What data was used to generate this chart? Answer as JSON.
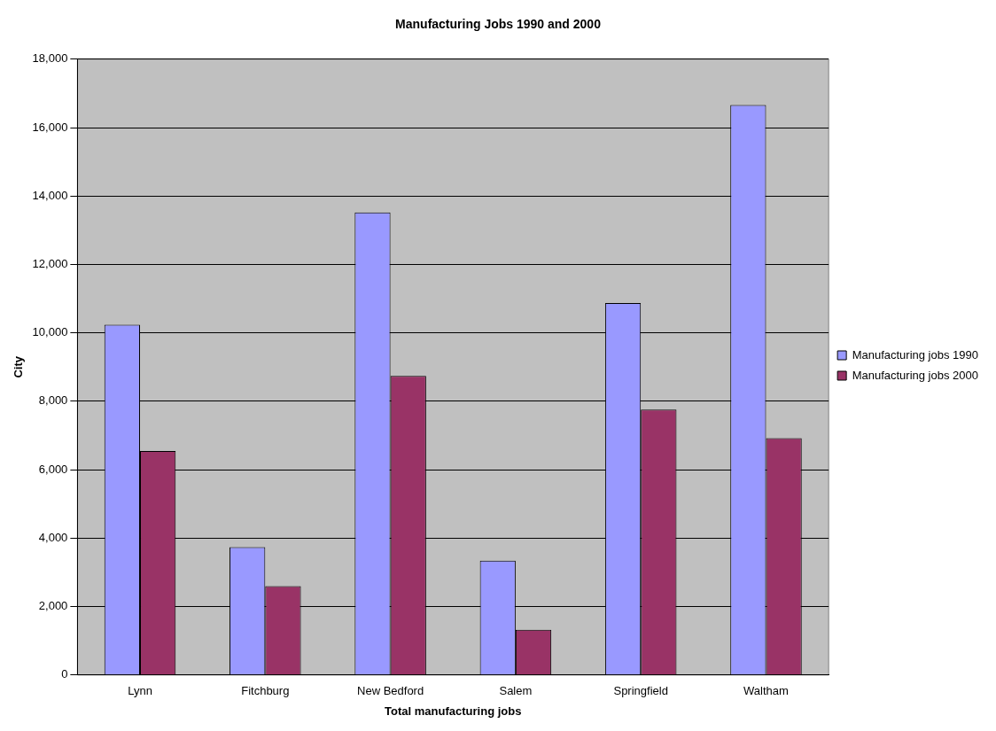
{
  "chart_data": {
    "type": "bar",
    "title": "Manufacturing Jobs 1990 and 2000",
    "xlabel": "Total manufacturing jobs",
    "ylabel": "City",
    "categories": [
      "Lynn",
      "Fitchburg",
      "New Bedford",
      "Salem",
      "Springfield",
      "Waltham"
    ],
    "series": [
      {
        "name": "Manufacturing jobs 1990",
        "color": "#9999ff",
        "values": [
          10240,
          3740,
          13520,
          3340,
          10870,
          16660
        ]
      },
      {
        "name": "Manufacturing jobs 2000",
        "color": "#993366",
        "values": [
          6550,
          2600,
          8740,
          1320,
          7760,
          6920
        ]
      }
    ],
    "ylim": [
      0,
      18000
    ],
    "yticks": [
      {
        "value": 0,
        "label": "0"
      },
      {
        "value": 2000,
        "label": "2,000"
      },
      {
        "value": 4000,
        "label": "4,000"
      },
      {
        "value": 6000,
        "label": "6,000"
      },
      {
        "value": 8000,
        "label": "8,000"
      },
      {
        "value": 10000,
        "label": "10,000"
      },
      {
        "value": 12000,
        "label": "12,000"
      },
      {
        "value": 14000,
        "label": "14,000"
      },
      {
        "value": 16000,
        "label": "16,000"
      },
      {
        "value": 18000,
        "label": "18,000"
      }
    ],
    "grid": "y",
    "legend": "right"
  }
}
